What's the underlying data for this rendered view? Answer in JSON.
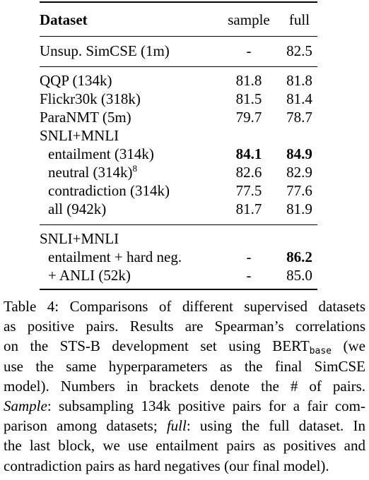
{
  "table": {
    "headers": [
      "Dataset",
      "sample",
      "full"
    ],
    "block1": [
      {
        "name": "Unsup. SimCSE (1m)",
        "sample": "-",
        "full": "82.5"
      }
    ],
    "block2": [
      {
        "name": "QQP (134k)",
        "sample": "81.8",
        "full": "81.8"
      },
      {
        "name": "Flickr30k (318k)",
        "sample": "81.5",
        "full": "81.4"
      },
      {
        "name": "ParaNMT (5m)",
        "sample": "79.7",
        "full": "78.7"
      },
      {
        "name": "SNLI+MNLI",
        "sample": "",
        "full": ""
      },
      {
        "name": "entailment (314k)",
        "sample": "84.1",
        "full": "84.9"
      },
      {
        "name": "neutral (314k)",
        "footnote": "8",
        "sample": "82.6",
        "full": "82.9"
      },
      {
        "name": "contradiction (314k)",
        "sample": "77.5",
        "full": "77.6"
      },
      {
        "name": "all (942k)",
        "sample": "81.7",
        "full": "81.9"
      }
    ],
    "block3": [
      {
        "name": "SNLI+MNLI",
        "sample": "",
        "full": ""
      },
      {
        "name": "entailment + hard neg.",
        "sample": "-",
        "full": "86.2"
      },
      {
        "name": "+ ANLI (52k)",
        "sample": "-",
        "full": "85.0"
      }
    ]
  },
  "caption": {
    "l1": "Table 4: Comparisons of different supervised datasets",
    "l2": "as positive pairs. Results are Spearman’s correlations",
    "l3a": "on the STS-B development set using BERT",
    "l3sub": "base",
    "l3b": " (we",
    "l4": "use the same hyperparameters as the final SimCSE",
    "l5": "model). Numbers in brackets denote the # of pairs.",
    "l6a": "Sample",
    "l6b": ": subsampling 134k positive pairs for a fair com-",
    "l7a": "parison among datasets; ",
    "l7b": "full",
    "l7c": ": using the full dataset. In",
    "l8": "the last block, we use entailment pairs as positives and",
    "l9": "contradiction pairs as hard negatives (our final model)."
  }
}
